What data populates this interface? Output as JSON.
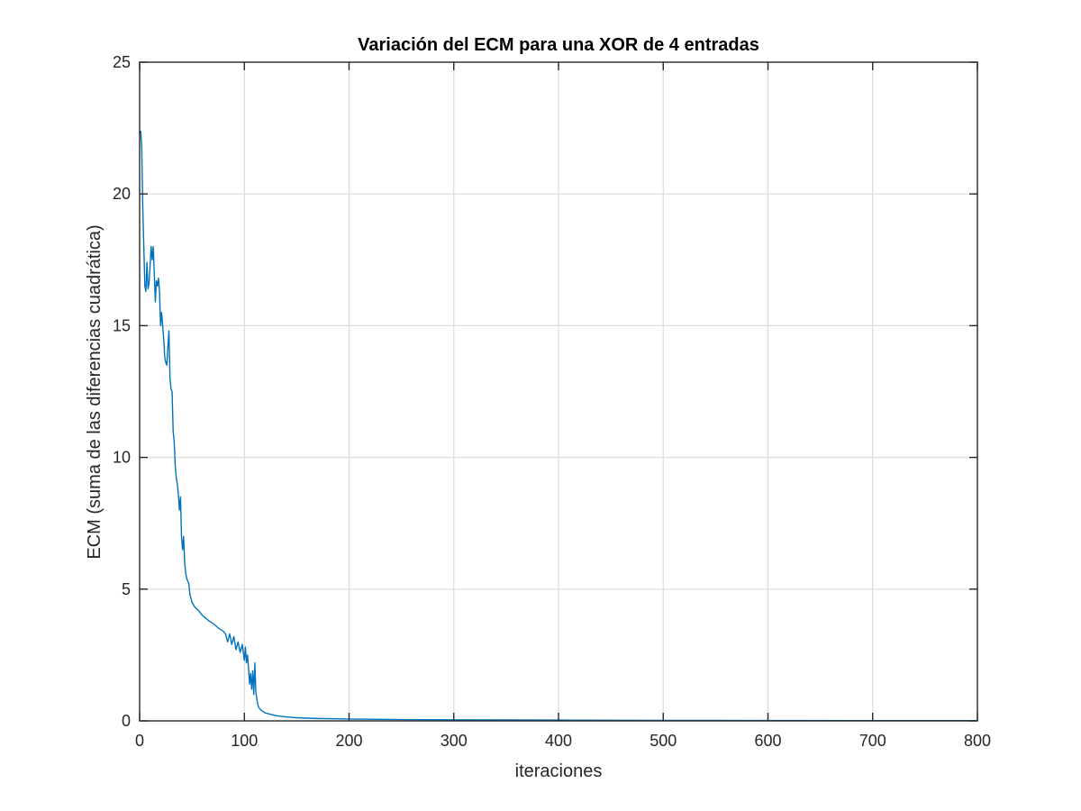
{
  "chart_data": {
    "type": "line",
    "title": "Variación del ECM para una XOR de 4 entradas",
    "xlabel": "iteraciones",
    "ylabel": "ECM (suma de las diferencias cuadrática)",
    "xlim": [
      0,
      800
    ],
    "ylim": [
      0,
      25
    ],
    "xticks": [
      0,
      100,
      200,
      300,
      400,
      500,
      600,
      700,
      800
    ],
    "yticks": [
      0,
      5,
      10,
      15,
      20,
      25
    ],
    "grid": true,
    "legend": "none",
    "series": [
      {
        "color": "#0072BD",
        "x": [
          1,
          2,
          3,
          4,
          5,
          6,
          7,
          8,
          9,
          10,
          11,
          12,
          13,
          14,
          15,
          16,
          17,
          18,
          19,
          20,
          21,
          22,
          23,
          24,
          25,
          26,
          27,
          28,
          29,
          30,
          31,
          32,
          33,
          34,
          35,
          36,
          37,
          38,
          39,
          40,
          41,
          42,
          43,
          44,
          45,
          46,
          47,
          48,
          50,
          53,
          56,
          60,
          63,
          66,
          70,
          73,
          76,
          80,
          82,
          84,
          86,
          88,
          90,
          92,
          94,
          96,
          98,
          100,
          101,
          102,
          103,
          104,
          105,
          106,
          107,
          108,
          109,
          110,
          111,
          112,
          113,
          114,
          116,
          120,
          125,
          130,
          140,
          150,
          170,
          200,
          250,
          300,
          400,
          500,
          600,
          700,
          800
        ],
        "y": [
          22.4,
          21.8,
          19.5,
          18.0,
          16.5,
          16.3,
          17.4,
          16.4,
          16.6,
          17.3,
          18.0,
          17.5,
          18.0,
          17.0,
          15.9,
          16.7,
          16.5,
          16.8,
          16.3,
          15.0,
          15.5,
          15.0,
          14.5,
          13.8,
          13.6,
          13.5,
          14.2,
          14.8,
          13.0,
          12.6,
          12.5,
          11.0,
          10.6,
          9.7,
          9.2,
          9.0,
          8.6,
          8.0,
          8.5,
          7.0,
          6.5,
          7.0,
          6.0,
          5.6,
          5.4,
          5.3,
          5.2,
          4.8,
          4.5,
          4.3,
          4.2,
          4.0,
          3.9,
          3.8,
          3.7,
          3.6,
          3.5,
          3.4,
          3.3,
          3.0,
          3.3,
          2.9,
          3.2,
          2.7,
          3.0,
          2.6,
          2.9,
          2.3,
          2.8,
          2.2,
          2.5,
          2.0,
          1.4,
          1.8,
          1.2,
          1.9,
          1.0,
          2.2,
          1.1,
          0.8,
          0.6,
          0.5,
          0.4,
          0.3,
          0.25,
          0.2,
          0.15,
          0.12,
          0.09,
          0.07,
          0.05,
          0.04,
          0.03,
          0.02,
          0.015,
          0.01,
          0.01
        ]
      }
    ]
  }
}
